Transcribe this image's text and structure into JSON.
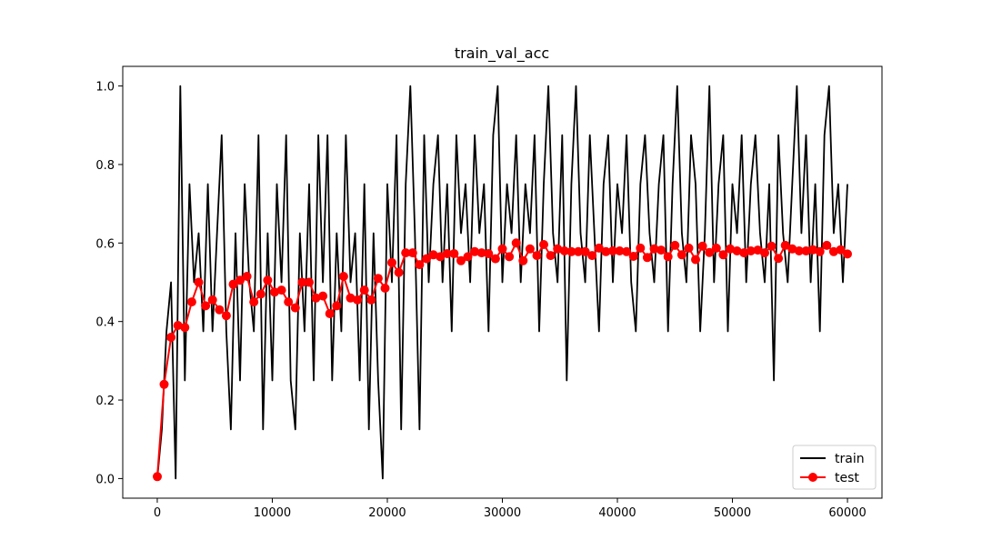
{
  "chart_data": {
    "type": "line",
    "title": "train_val_acc",
    "xlabel": "",
    "ylabel": "",
    "xlim": [
      -3000,
      63000
    ],
    "ylim": [
      -0.05,
      1.05
    ],
    "xticks": [
      0,
      10000,
      20000,
      30000,
      40000,
      50000,
      60000
    ],
    "xtick_labels": [
      "0",
      "10000",
      "20000",
      "30000",
      "40000",
      "50000",
      "60000"
    ],
    "yticks": [
      0.0,
      0.2,
      0.4,
      0.6,
      0.8,
      1.0
    ],
    "ytick_labels": [
      "0.0",
      "0.2",
      "0.4",
      "0.6",
      "0.8",
      "1.0"
    ],
    "grid": false,
    "legend_position": "lower-right",
    "series": [
      {
        "name": "train",
        "color": "#000000",
        "marker": "none",
        "x_start": 0,
        "x_step": 400,
        "values": [
          0.0,
          0.125,
          0.375,
          0.5,
          0.0,
          1.0,
          0.25,
          0.75,
          0.5,
          0.625,
          0.375,
          0.75,
          0.375,
          0.625,
          0.875,
          0.375,
          0.125,
          0.625,
          0.25,
          0.75,
          0.5,
          0.375,
          0.875,
          0.125,
          0.625,
          0.25,
          0.75,
          0.5,
          0.875,
          0.25,
          0.125,
          0.625,
          0.375,
          0.75,
          0.25,
          0.875,
          0.5,
          0.875,
          0.25,
          0.625,
          0.375,
          0.875,
          0.5,
          0.625,
          0.25,
          0.75,
          0.125,
          0.625,
          0.25,
          0.0,
          0.75,
          0.5,
          0.875,
          0.125,
          0.75,
          1.0,
          0.625,
          0.125,
          0.875,
          0.5,
          0.75,
          0.875,
          0.5,
          0.75,
          0.375,
          0.875,
          0.625,
          0.75,
          0.5,
          0.875,
          0.625,
          0.75,
          0.375,
          0.875,
          1.0,
          0.5,
          0.75,
          0.625,
          0.875,
          0.5,
          0.75,
          0.625,
          0.875,
          0.375,
          0.75,
          1.0,
          0.625,
          0.5,
          0.875,
          0.25,
          0.75,
          1.0,
          0.625,
          0.5,
          0.875,
          0.625,
          0.375,
          0.75,
          0.875,
          0.5,
          0.75,
          0.625,
          0.875,
          0.5,
          0.375,
          0.75,
          0.875,
          0.625,
          0.5,
          0.75,
          0.875,
          0.375,
          0.75,
          1.0,
          0.625,
          0.5,
          0.875,
          0.75,
          0.375,
          0.625,
          1.0,
          0.5,
          0.75,
          0.875,
          0.375,
          0.75,
          0.625,
          0.875,
          0.5,
          0.75,
          0.875,
          0.625,
          0.5,
          0.75,
          0.25,
          0.875,
          0.625,
          0.5,
          0.75,
          1.0,
          0.625,
          0.875,
          0.5,
          0.75,
          0.375,
          0.875,
          1.0,
          0.625,
          0.75,
          0.5,
          0.75
        ]
      },
      {
        "name": "test",
        "color": "#ff0000",
        "marker": "circle",
        "x_start": 0,
        "x_step": 600,
        "values": [
          0.005,
          0.24,
          0.36,
          0.39,
          0.385,
          0.45,
          0.5,
          0.44,
          0.455,
          0.43,
          0.415,
          0.495,
          0.505,
          0.515,
          0.45,
          0.47,
          0.505,
          0.475,
          0.48,
          0.45,
          0.435,
          0.5,
          0.5,
          0.46,
          0.465,
          0.42,
          0.44,
          0.515,
          0.46,
          0.455,
          0.48,
          0.455,
          0.51,
          0.485,
          0.55,
          0.525,
          0.575,
          0.575,
          0.545,
          0.56,
          0.57,
          0.565,
          0.573,
          0.573,
          0.555,
          0.565,
          0.578,
          0.575,
          0.573,
          0.56,
          0.585,
          0.565,
          0.6,
          0.555,
          0.585,
          0.568,
          0.596,
          0.568,
          0.585,
          0.58,
          0.578,
          0.578,
          0.578,
          0.568,
          0.587,
          0.578,
          0.58,
          0.58,
          0.578,
          0.566,
          0.587,
          0.563,
          0.585,
          0.582,
          0.565,
          0.594,
          0.57,
          0.587,
          0.558,
          0.592,
          0.576,
          0.587,
          0.57,
          0.585,
          0.58,
          0.575,
          0.58,
          0.582,
          0.575,
          0.592,
          0.561,
          0.594,
          0.585,
          0.58,
          0.58,
          0.583,
          0.578,
          0.594,
          0.578,
          0.583,
          0.572
        ]
      }
    ]
  }
}
